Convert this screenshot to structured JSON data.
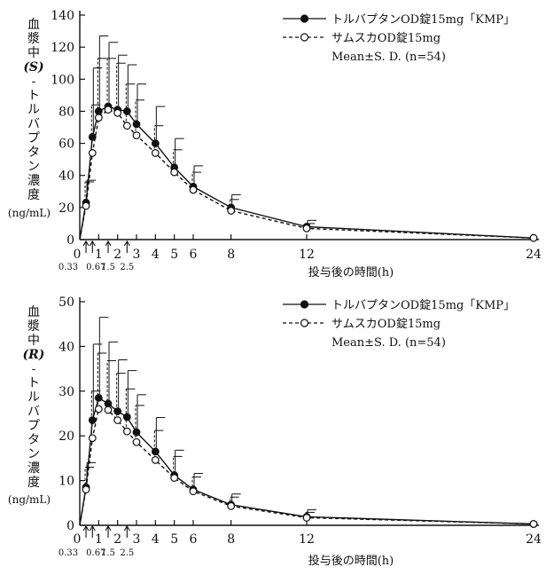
{
  "chart_data": [
    {
      "type": "line",
      "ylabel": "血漿中(S)-トルバプタン濃度",
      "ylabel_chars": [
        "血",
        "漿",
        "中",
        "(S)",
        "-",
        "ト",
        "ル",
        "バ",
        "プ",
        "タ",
        "ン",
        "濃",
        "度"
      ],
      "yunit": "(ng/mL)",
      "xlabel": "投与後の時間(h)",
      "xlim": [
        0,
        24
      ],
      "ylim": [
        0,
        140
      ],
      "yticks": [
        0,
        20,
        40,
        60,
        80,
        100,
        120,
        140
      ],
      "xticks": [
        1,
        2,
        3,
        4,
        5,
        6,
        8,
        12,
        24
      ],
      "xtick_zero": "0",
      "minor_ticks": [
        0.33,
        0.67,
        1.5,
        2.5
      ],
      "minor_labels": [
        "0.33",
        "0.67",
        "1.5",
        "2.5"
      ],
      "x": [
        0,
        0.33,
        0.67,
        1,
        1.5,
        2,
        2.5,
        3,
        4,
        5,
        6,
        8,
        12,
        24
      ],
      "series": [
        {
          "name": "トルバプタンOD錠15mg「KMP」",
          "marker": "filled-circle",
          "line": "solid",
          "color": "#111111",
          "values": [
            0,
            23,
            64,
            80,
            83,
            81,
            80,
            72,
            60,
            45,
            33,
            20,
            8,
            1
          ],
          "sd": [
            0,
            14,
            43,
            47,
            40,
            34,
            29,
            25,
            23,
            18,
            13,
            8,
            4,
            0
          ]
        },
        {
          "name": "サムスカOD錠15mg",
          "marker": "open-circle",
          "line": "dashed",
          "color": "#111111",
          "values": [
            0,
            21,
            54,
            76,
            81,
            79,
            71,
            65,
            54,
            42,
            31,
            18,
            7,
            1
          ],
          "sd": [
            0,
            15,
            30,
            37,
            32,
            31,
            26,
            22,
            17,
            14,
            11,
            7,
            3,
            0
          ]
        }
      ],
      "legend_note": "Mean±S. D. (n=54)"
    },
    {
      "type": "line",
      "ylabel": "血漿中(R)-トルバプタン濃度",
      "ylabel_chars": [
        "血",
        "漿",
        "中",
        "(R)",
        "-",
        "ト",
        "ル",
        "バ",
        "プ",
        "タ",
        "ン",
        "濃",
        "度"
      ],
      "yunit": "(ng/mL)",
      "xlabel": "投与後の時間(h)",
      "xlim": [
        0,
        24
      ],
      "ylim": [
        0,
        50
      ],
      "yticks": [
        0,
        10,
        20,
        30,
        40,
        50
      ],
      "xticks": [
        1,
        2,
        3,
        4,
        5,
        6,
        8,
        12,
        24
      ],
      "xtick_zero": "0",
      "minor_ticks": [
        0.33,
        0.67,
        1.5,
        2.5
      ],
      "minor_labels": [
        "0.33",
        "0.67",
        "1.5",
        "2.5"
      ],
      "x": [
        0,
        0.33,
        0.67,
        1,
        1.5,
        2,
        2.5,
        3,
        4,
        5,
        6,
        8,
        12,
        24
      ],
      "series": [
        {
          "name": "トルバプタンOD錠15mg「KMP」",
          "marker": "filled-circle",
          "line": "solid",
          "color": "#111111",
          "values": [
            0,
            8.5,
            23.5,
            28.5,
            27.2,
            25.5,
            24.2,
            20.8,
            16.5,
            11.2,
            8.0,
            4.6,
            1.9,
            0.3
          ],
          "sd": [
            0,
            5.5,
            17,
            18,
            13.8,
            11.5,
            10.4,
            8.4,
            7.6,
            5.6,
            3.6,
            2.4,
            1.6,
            0
          ]
        },
        {
          "name": "サムスカOD錠15mg",
          "marker": "open-circle",
          "line": "dashed",
          "color": "#111111",
          "values": [
            0,
            8.0,
            19.5,
            26.0,
            25.8,
            23.5,
            21.0,
            18.6,
            14.6,
            10.6,
            7.6,
            4.3,
            1.7,
            0.3
          ],
          "sd": [
            0,
            5,
            10.5,
            12.5,
            11,
            10.5,
            9.5,
            8.2,
            6.6,
            4.8,
            3.2,
            2,
            1.2,
            0
          ]
        }
      ],
      "legend_note": "Mean±S. D. (n=54)"
    }
  ]
}
